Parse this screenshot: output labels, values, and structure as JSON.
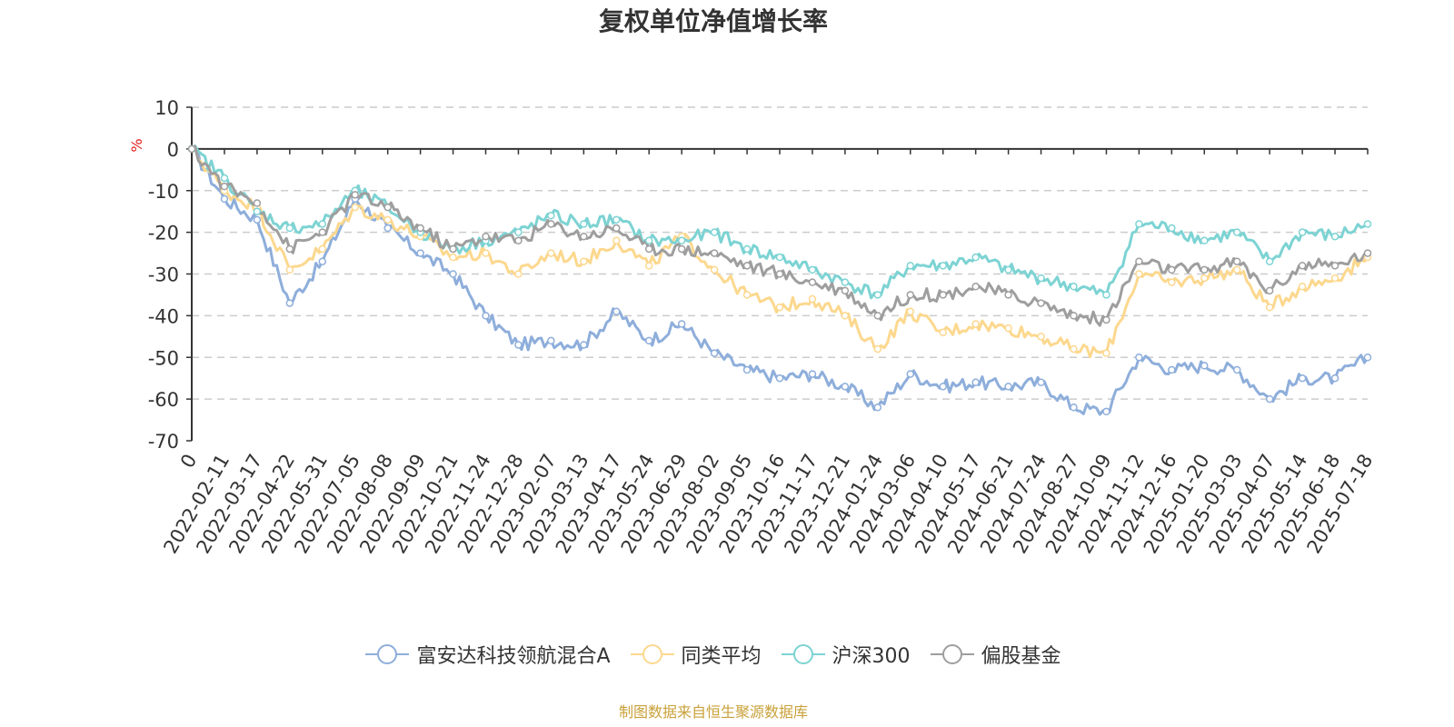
{
  "chart_data": {
    "type": "line",
    "title": "复权单位净值增长率",
    "ylabel": "%",
    "xlabel": "",
    "ylim": [
      -70,
      10
    ],
    "yticks": [
      10,
      0,
      -10,
      -20,
      -30,
      -40,
      -50,
      -60,
      -70
    ],
    "grid": true,
    "legend_position": "bottom",
    "x": [
      "0",
      "2022-02-11",
      "2022-03-17",
      "2022-04-22",
      "2022-05-31",
      "2022-07-05",
      "2022-08-08",
      "2022-09-09",
      "2022-10-21",
      "2022-11-24",
      "2022-12-28",
      "2023-02-07",
      "2023-03-13",
      "2023-04-17",
      "2023-05-24",
      "2023-06-29",
      "2023-08-02",
      "2023-09-05",
      "2023-10-16",
      "2023-11-17",
      "2023-12-21",
      "2024-01-24",
      "2024-03-06",
      "2024-04-10",
      "2024-05-17",
      "2024-06-21",
      "2024-07-24",
      "2024-08-27",
      "2024-10-09",
      "2024-11-12",
      "2024-12-16",
      "2025-01-20",
      "2025-03-03",
      "2025-04-07",
      "2025-05-14",
      "2025-06-18",
      "2025-07-18"
    ],
    "series": [
      {
        "name": "富安达科技领航混合A",
        "color": "#8eaedb",
        "values": [
          0,
          -12,
          -17,
          -37,
          -27,
          -12,
          -19,
          -25,
          -30,
          -40,
          -47,
          -46,
          -47,
          -39,
          -46,
          -42,
          -49,
          -53,
          -55,
          -54,
          -57,
          -62,
          -54,
          -57,
          -56,
          -57,
          -56,
          -62,
          -63,
          -50,
          -53,
          -52,
          -53,
          -60,
          -55,
          -55,
          -50
        ]
      },
      {
        "name": "同类平均",
        "color": "#fcd88e",
        "values": [
          0,
          -10,
          -14,
          -29,
          -24,
          -14,
          -17,
          -21,
          -26,
          -25,
          -30,
          -25,
          -27,
          -22,
          -28,
          -21,
          -29,
          -35,
          -38,
          -36,
          -40,
          -48,
          -39,
          -44,
          -42,
          -43,
          -45,
          -48,
          -49,
          -30,
          -32,
          -31,
          -29,
          -38,
          -33,
          -31,
          -26
        ]
      },
      {
        "name": "沪深300",
        "color": "#7dd3d3",
        "values": [
          0,
          -7,
          -15,
          -19,
          -18,
          -10,
          -14,
          -20,
          -24,
          -22,
          -20,
          -16,
          -18,
          -17,
          -22,
          -22,
          -20,
          -24,
          -26,
          -29,
          -32,
          -35,
          -28,
          -28,
          -26,
          -29,
          -31,
          -33,
          -35,
          -18,
          -19,
          -22,
          -20,
          -27,
          -20,
          -21,
          -18
        ]
      },
      {
        "name": "偏股基金",
        "color": "#9e9e9e",
        "values": [
          0,
          -9,
          -13,
          -24,
          -20,
          -11,
          -14,
          -19,
          -24,
          -21,
          -22,
          -18,
          -21,
          -19,
          -24,
          -24,
          -25,
          -28,
          -30,
          -32,
          -34,
          -40,
          -35,
          -35,
          -33,
          -35,
          -37,
          -40,
          -41,
          -27,
          -29,
          -29,
          -27,
          -34,
          -28,
          -28,
          -25
        ]
      }
    ]
  },
  "legend": [
    {
      "label": "富安达科技领航混合A",
      "color": "#8eaedb"
    },
    {
      "label": "同类平均",
      "color": "#fcd88e"
    },
    {
      "label": "沪深300",
      "color": "#7dd3d3"
    },
    {
      "label": "偏股基金",
      "color": "#9e9e9e"
    }
  ],
  "source_note": "制图数据来自恒生聚源数据库",
  "colors": {
    "axis": "#333333",
    "grid": "#cccccc",
    "ylabel": "#e02020",
    "source": "#c9a13a"
  }
}
